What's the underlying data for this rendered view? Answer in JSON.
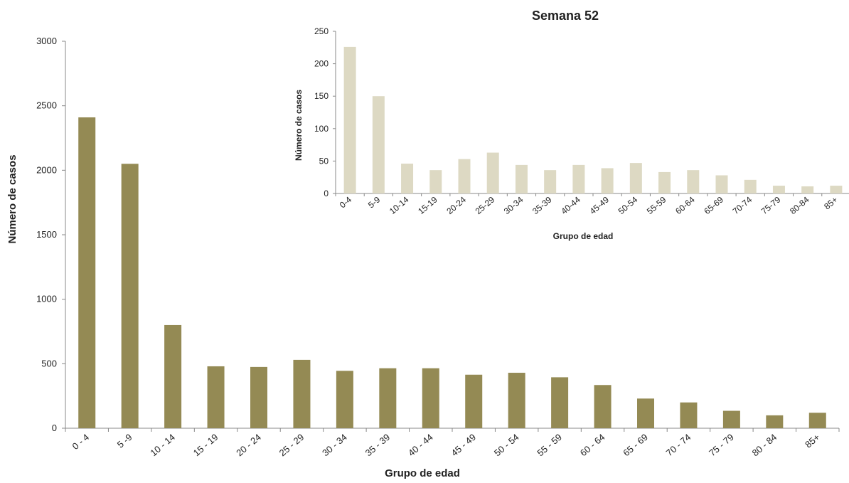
{
  "chart_data": [
    {
      "type": "bar",
      "title": "",
      "xlabel": "Grupo de edad",
      "ylabel": "Número de casos",
      "ylim": [
        0,
        3000
      ],
      "yticks": [
        0,
        500,
        1000,
        1500,
        2000,
        2500,
        3000
      ],
      "grid": false,
      "colors": {
        "bar": "#948a54",
        "axis": "#888888"
      },
      "categories": [
        "0 - 4",
        "5 -9",
        "10 - 14",
        "15 - 19",
        "20 - 24",
        "25 - 29",
        "30 - 34",
        "35 - 39",
        "40 - 44",
        "45 - 49",
        "50 - 54",
        "55 - 59",
        "60 - 64",
        "65 - 69",
        "70 - 74",
        "75 - 79",
        "80 - 84",
        "85+"
      ],
      "values": [
        2410,
        2050,
        800,
        480,
        475,
        530,
        445,
        465,
        465,
        415,
        430,
        395,
        335,
        230,
        200,
        135,
        100,
        120
      ]
    },
    {
      "type": "bar",
      "title": "Semana 52",
      "xlabel": "Grupo de edad",
      "ylabel": "Número de casos",
      "ylim": [
        0,
        250
      ],
      "yticks": [
        0,
        50,
        100,
        150,
        200,
        250
      ],
      "grid": false,
      "colors": {
        "bar": "#ddd9c3",
        "axis": "#888888"
      },
      "categories": [
        "0-4",
        "5-9",
        "10-14",
        "15-19",
        "20-24",
        "25-29",
        "30-34",
        "35-39",
        "40-44",
        "45-49",
        "50-54",
        "55-59",
        "60-64",
        "65-69",
        "70-74",
        "75-79",
        "80-84",
        "85+"
      ],
      "values": [
        226,
        150,
        46,
        36,
        53,
        63,
        44,
        36,
        44,
        39,
        47,
        33,
        36,
        28,
        21,
        12,
        11,
        12
      ]
    }
  ]
}
